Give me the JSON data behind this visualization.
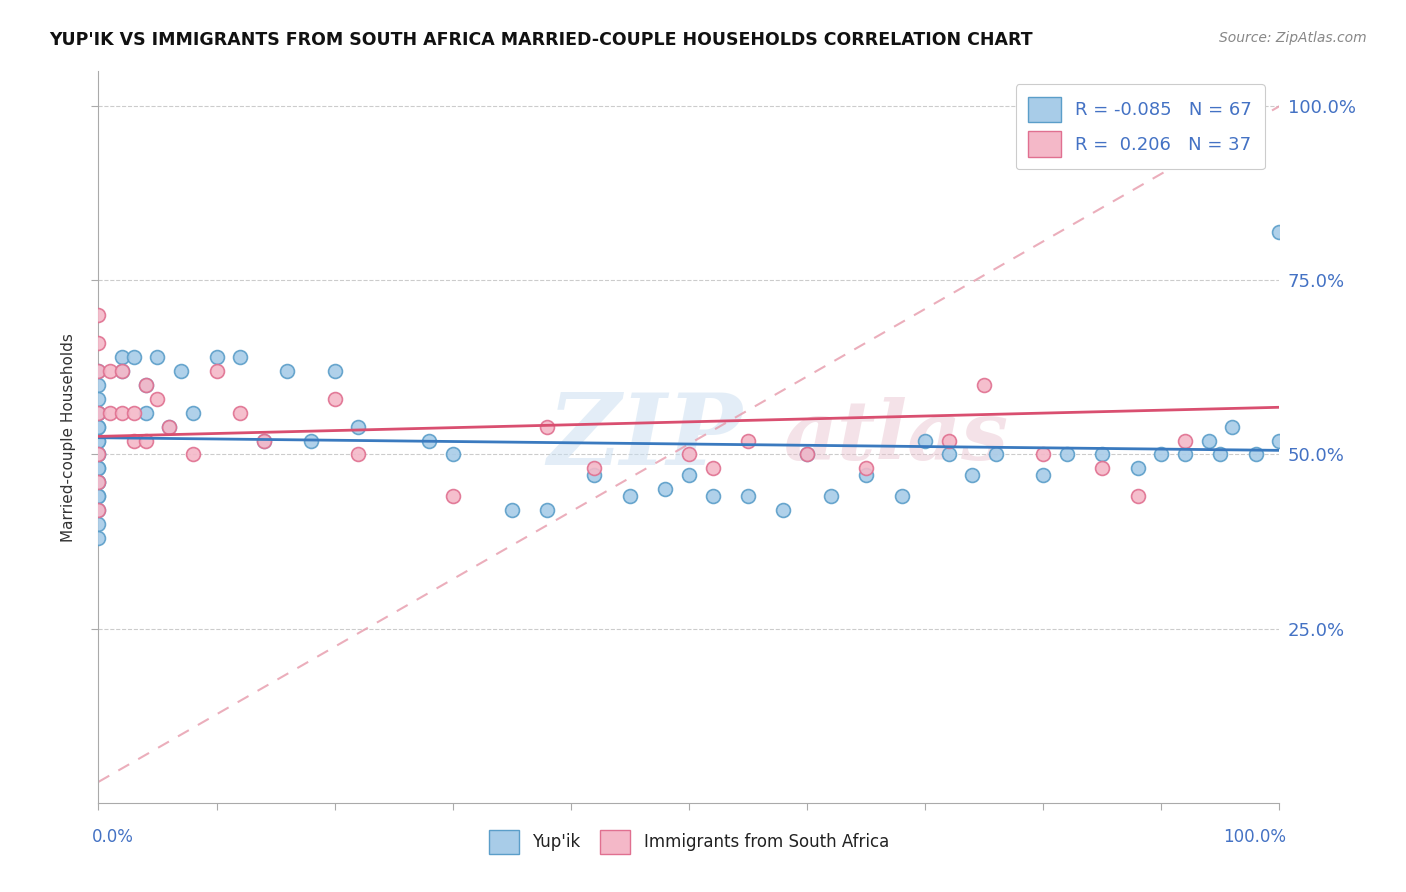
{
  "title": "YUP'IK VS IMMIGRANTS FROM SOUTH AFRICA MARRIED-COUPLE HOUSEHOLDS CORRELATION CHART",
  "source": "Source: ZipAtlas.com",
  "ylabel": "Married-couple Households",
  "r_yupik": -0.085,
  "n_yupik": 67,
  "r_immigrants": 0.206,
  "n_immigrants": 37,
  "blue_scatter": "#a8cce8",
  "blue_edge": "#5b9ec9",
  "pink_scatter": "#f4b8c8",
  "pink_edge": "#e07090",
  "trend_blue": "#3a7abf",
  "trend_pink": "#d94f70",
  "dashed_color": "#e8a0b0",
  "text_color": "#4472c4",
  "watermark_color": "#c8ddf0",
  "watermark_pink": "#e8c0cc",
  "yupik_x": [
    0.0,
    0.0,
    0.0,
    0.0,
    0.0,
    0.0,
    0.0,
    0.0,
    0.0,
    0.0,
    0.0,
    0.0,
    0.0,
    0.0,
    0.0,
    0.0,
    0.0,
    0.0,
    0.0,
    0.0,
    0.02,
    0.02,
    0.03,
    0.04,
    0.04,
    0.05,
    0.06,
    0.07,
    0.08,
    0.1,
    0.12,
    0.14,
    0.16,
    0.18,
    0.2,
    0.22,
    0.28,
    0.3,
    0.35,
    0.38,
    0.42,
    0.45,
    0.48,
    0.5,
    0.52,
    0.55,
    0.58,
    0.6,
    0.62,
    0.65,
    0.68,
    0.7,
    0.72,
    0.74,
    0.76,
    0.8,
    0.82,
    0.85,
    0.88,
    0.9,
    0.92,
    0.94,
    0.95,
    0.96,
    0.98,
    1.0,
    1.0
  ],
  "yupik_y": [
    0.52,
    0.54,
    0.56,
    0.5,
    0.48,
    0.46,
    0.44,
    0.52,
    0.54,
    0.5,
    0.48,
    0.46,
    0.44,
    0.42,
    0.4,
    0.38,
    0.62,
    0.6,
    0.56,
    0.58,
    0.64,
    0.62,
    0.64,
    0.6,
    0.56,
    0.64,
    0.54,
    0.62,
    0.56,
    0.64,
    0.64,
    0.52,
    0.62,
    0.52,
    0.62,
    0.54,
    0.52,
    0.5,
    0.42,
    0.42,
    0.47,
    0.44,
    0.45,
    0.47,
    0.44,
    0.44,
    0.42,
    0.5,
    0.44,
    0.47,
    0.44,
    0.52,
    0.5,
    0.47,
    0.5,
    0.47,
    0.5,
    0.5,
    0.48,
    0.5,
    0.5,
    0.52,
    0.5,
    0.54,
    0.5,
    0.52,
    0.82
  ],
  "immigrants_x": [
    0.0,
    0.0,
    0.0,
    0.0,
    0.0,
    0.0,
    0.0,
    0.01,
    0.01,
    0.02,
    0.02,
    0.03,
    0.03,
    0.04,
    0.04,
    0.05,
    0.06,
    0.08,
    0.1,
    0.12,
    0.14,
    0.2,
    0.22,
    0.3,
    0.38,
    0.42,
    0.5,
    0.52,
    0.55,
    0.6,
    0.65,
    0.72,
    0.75,
    0.8,
    0.85,
    0.88,
    0.92
  ],
  "immigrants_y": [
    0.7,
    0.66,
    0.62,
    0.56,
    0.5,
    0.46,
    0.42,
    0.62,
    0.56,
    0.62,
    0.56,
    0.56,
    0.52,
    0.6,
    0.52,
    0.58,
    0.54,
    0.5,
    0.62,
    0.56,
    0.52,
    0.58,
    0.5,
    0.44,
    0.54,
    0.48,
    0.5,
    0.48,
    0.52,
    0.5,
    0.48,
    0.52,
    0.6,
    0.5,
    0.48,
    0.44,
    0.52
  ],
  "xlim": [
    0.0,
    1.0
  ],
  "ylim": [
    0.0,
    1.05
  ],
  "yticks": [
    0.25,
    0.5,
    0.75,
    1.0
  ]
}
